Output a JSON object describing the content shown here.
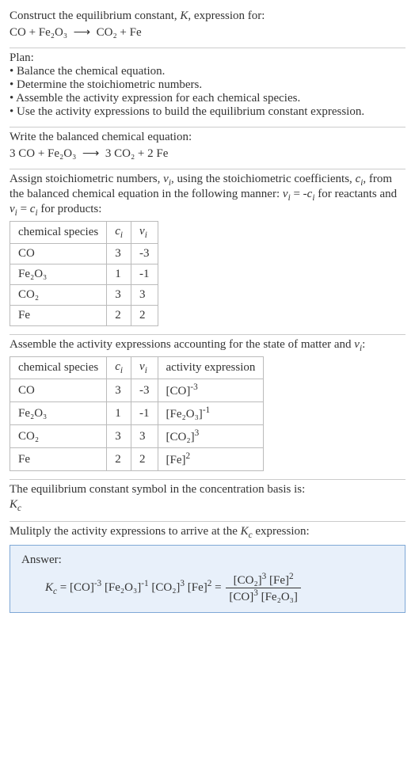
{
  "intro": {
    "line1": "Construct the equilibrium constant, K, expression for:",
    "eq_lhs": "CO + Fe₂O₃",
    "eq_rhs": "CO₂ + Fe"
  },
  "plan": {
    "title": "Plan:",
    "items": [
      "• Balance the chemical equation.",
      "• Determine the stoichiometric numbers.",
      "• Assemble the activity expression for each chemical species.",
      "• Use the activity expressions to build the equilibrium constant expression."
    ]
  },
  "balanced": {
    "title": "Write the balanced chemical equation:",
    "eq_lhs": "3 CO + Fe₂O₃",
    "eq_rhs": "3 CO₂ + 2 Fe"
  },
  "stoich": {
    "text": "Assign stoichiometric numbers, νᵢ, using the stoichiometric coefficients, cᵢ, from the balanced chemical equation in the following manner: νᵢ = -cᵢ for reactants and νᵢ = cᵢ for products:",
    "headers": {
      "species": "chemical species",
      "ci": "cᵢ",
      "vi": "νᵢ"
    },
    "rows": [
      {
        "species": "CO",
        "ci": "3",
        "vi": "-3"
      },
      {
        "species": "Fe₂O₃",
        "ci": "1",
        "vi": "-1"
      },
      {
        "species": "CO₂",
        "ci": "3",
        "vi": "3"
      },
      {
        "species": "Fe",
        "ci": "2",
        "vi": "2"
      }
    ]
  },
  "activity": {
    "title": "Assemble the activity expressions accounting for the state of matter and νᵢ:",
    "headers": {
      "species": "chemical species",
      "ci": "cᵢ",
      "vi": "νᵢ",
      "expr": "activity expression"
    },
    "rows": [
      {
        "species": "CO",
        "ci": "3",
        "vi": "-3",
        "expr_base": "[CO]",
        "expr_exp": "-3"
      },
      {
        "species": "Fe₂O₃",
        "ci": "1",
        "vi": "-1",
        "expr_base": "[Fe₂O₃]",
        "expr_exp": "-1"
      },
      {
        "species": "CO₂",
        "ci": "3",
        "vi": "3",
        "expr_base": "[CO₂]",
        "expr_exp": "3"
      },
      {
        "species": "Fe",
        "ci": "2",
        "vi": "2",
        "expr_base": "[Fe]",
        "expr_exp": "2"
      }
    ]
  },
  "kc_symbol": {
    "line1": "The equilibrium constant symbol in the concentration basis is:",
    "symbol": "K_c"
  },
  "multiply": {
    "title": "Mulitply the activity expressions to arrive at the K_c expression:"
  },
  "answer": {
    "label": "Answer:",
    "kc": "K_c",
    "lhs_terms": [
      {
        "base": "[CO]",
        "exp": "-3"
      },
      {
        "base": "[Fe₂O₃]",
        "exp": "-1"
      },
      {
        "base": "[CO₂]",
        "exp": "3"
      },
      {
        "base": "[Fe]",
        "exp": "2"
      }
    ],
    "frac": {
      "num": [
        {
          "base": "[CO₂]",
          "exp": "3"
        },
        {
          "base": "[Fe]",
          "exp": "2"
        }
      ],
      "den": [
        {
          "base": "[CO]",
          "exp": "3"
        },
        {
          "base": "[Fe₂O₃]",
          "exp": ""
        }
      ]
    }
  }
}
